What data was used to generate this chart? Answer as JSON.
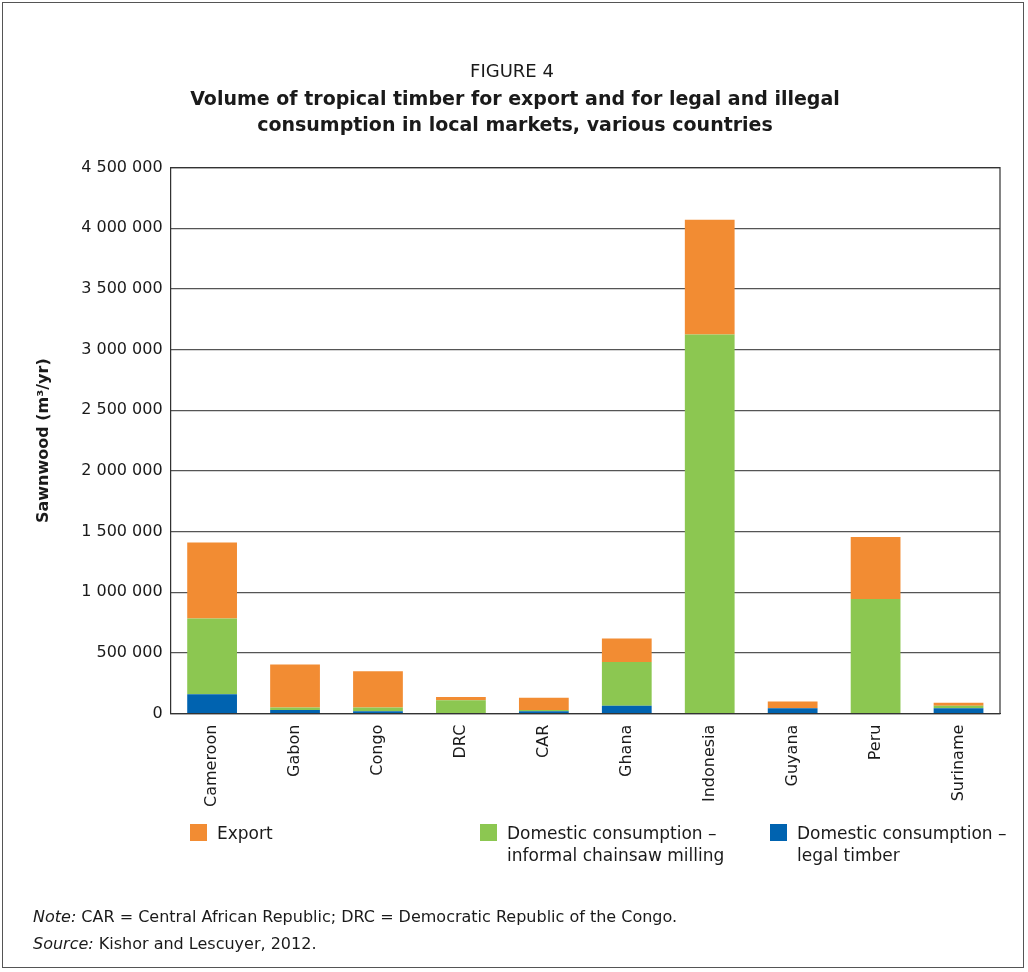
{
  "chart_data": {
    "type": "bar",
    "title": "FIGURE 4",
    "subtitle": "Volume of tropical timber for export and for legal and illegal consumption in local markets, various countries",
    "ylabel": "Sawnwood (m³/yr)",
    "categories": [
      "Cameroon",
      "Gabon",
      "Congo",
      "DRC",
      "CAR",
      "Ghana",
      "Indonesia",
      "Guyana",
      "Peru",
      "Suriname"
    ],
    "stacked": true,
    "series": [
      {
        "name": "Domestic consumption – legal timber",
        "color": "#0063b0",
        "values": [
          160000,
          30000,
          20000,
          0,
          20000,
          65000,
          0,
          45000,
          0,
          45000
        ]
      },
      {
        "name": "Domestic consumption – informal chainsaw milling",
        "color": "#8cc751",
        "values": [
          625000,
          20000,
          30000,
          110000,
          10000,
          360000,
          3125000,
          0,
          945000,
          20000
        ]
      },
      {
        "name": "Export",
        "color": "#f28c33",
        "values": [
          625000,
          355000,
          300000,
          27000,
          100000,
          195000,
          945000,
          55000,
          510000,
          25000
        ]
      }
    ],
    "ylim": [
      0,
      4500000
    ],
    "yticks": [
      0,
      {
        "value": 500000,
        "label": "500 000"
      },
      {
        "value": 1000000,
        "label": "1 000 000"
      },
      {
        "value": 1500000,
        "label": "1 500 000"
      },
      {
        "value": 2000000,
        "label": "2 000 000"
      },
      {
        "value": 2500000,
        "label": "2 500 000"
      },
      {
        "value": 3000000,
        "label": "3 000 000"
      },
      {
        "value": 3500000,
        "label": "3 500 000"
      },
      {
        "value": 4000000,
        "label": "4 000 000"
      },
      {
        "value": 4500000,
        "label": "4 500 000"
      }
    ],
    "grid": "y",
    "legend": "bottom",
    "annotations": [
      "Note: CAR = Central African Republic; DRC = Democratic Republic of the Congo.",
      "Source: Kishor and Lescuyer, 2012."
    ]
  }
}
